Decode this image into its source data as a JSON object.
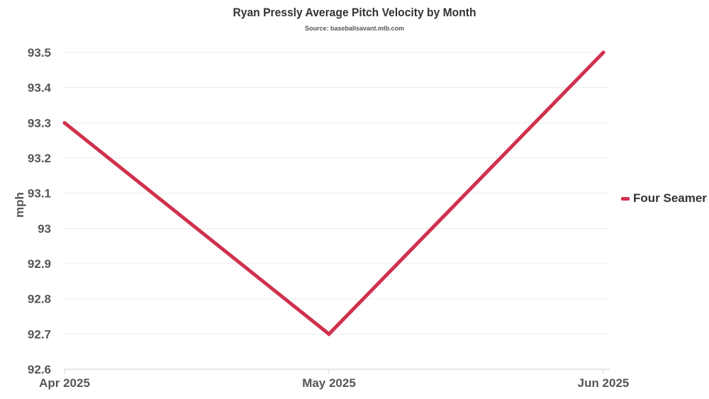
{
  "chart_data": {
    "type": "line",
    "title": "Ryan Pressly Average Pitch Velocity by Month",
    "subtitle": "Source: baseballsavant.mlb.com",
    "xlabel": "",
    "ylabel": "mph",
    "categories": [
      "Apr 2025",
      "May 2025",
      "Jun 2025"
    ],
    "series": [
      {
        "name": "Four Seamer",
        "color": "#d0304e",
        "values": [
          93.3,
          92.7,
          93.5
        ]
      }
    ],
    "ylim": [
      92.6,
      93.5
    ],
    "yticks": [
      92.6,
      92.7,
      92.8,
      92.9,
      93,
      93.1,
      93.2,
      93.3,
      93.4,
      93.5
    ],
    "ytick_labels": [
      "92.6",
      "92.7",
      "92.8",
      "92.9",
      "93",
      "93.1",
      "93.2",
      "93.3",
      "93.4",
      "93.5"
    ],
    "grid": true,
    "legend_position": "right"
  }
}
